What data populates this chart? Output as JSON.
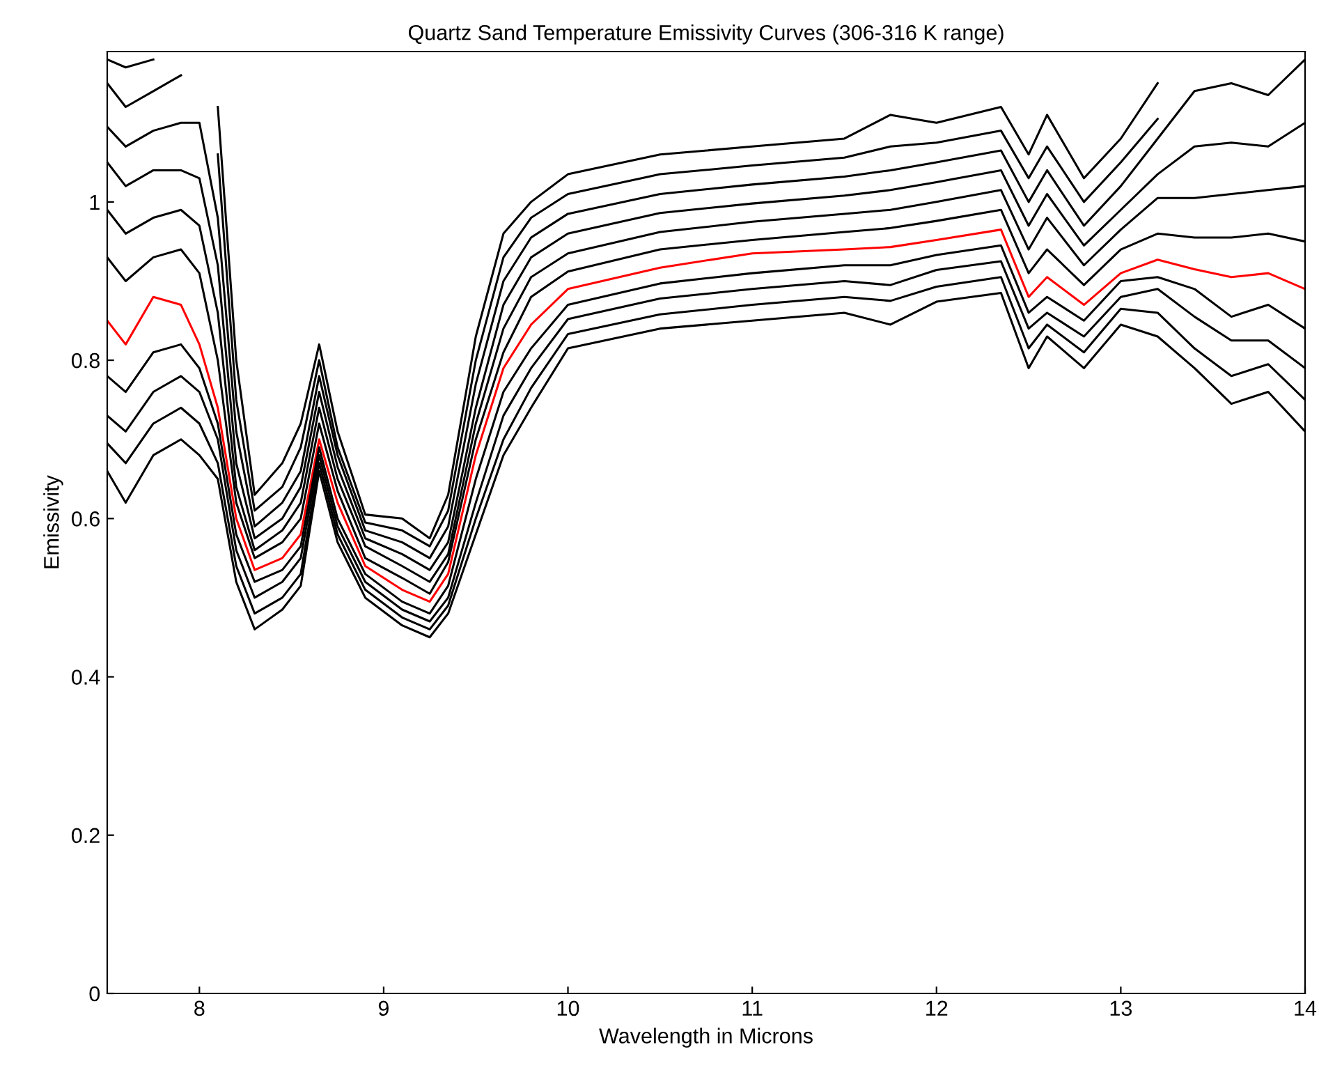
{
  "chart_data": {
    "type": "line",
    "title": "Quartz Sand Temperature Emissivity Curves (306-316 K range)",
    "xlabel": "Wavelength in Microns",
    "ylabel": "Emissivity",
    "x": [
      7.5,
      7.6,
      7.75,
      7.9,
      8.0,
      8.1,
      8.2,
      8.3,
      8.45,
      8.55,
      8.65,
      8.75,
      8.9,
      9.1,
      9.25,
      9.35,
      9.5,
      9.65,
      9.8,
      10.0,
      10.5,
      11.0,
      11.5,
      11.75,
      12.0,
      12.35,
      12.5,
      12.6,
      12.8,
      13.0,
      13.2,
      13.4,
      13.6,
      13.8,
      14.0
    ],
    "series": [
      {
        "color": "#000000",
        "values": [
          1.18,
          1.17,
          1.18,
          null,
          null,
          1.12,
          0.8,
          0.63,
          0.67,
          0.72,
          0.82,
          0.71,
          0.605,
          0.6,
          0.575,
          0.63,
          0.83,
          0.96,
          1.0,
          1.035,
          1.06,
          1.07,
          1.08,
          1.11,
          1.1,
          1.12,
          1.06,
          1.11,
          1.03,
          1.08,
          1.15,
          null,
          null,
          null,
          null
        ]
      },
      {
        "color": "#000000",
        "values": [
          1.15,
          1.12,
          1.14,
          1.16,
          null,
          1.06,
          0.75,
          0.61,
          0.64,
          0.69,
          0.8,
          0.69,
          0.595,
          0.585,
          0.565,
          0.61,
          0.8,
          0.93,
          0.98,
          1.01,
          1.035,
          1.046,
          1.056,
          1.07,
          1.075,
          1.09,
          1.03,
          1.07,
          1.0,
          1.05,
          1.105,
          null,
          null,
          null,
          null
        ]
      },
      {
        "color": "#000000",
        "values": [
          1.095,
          1.07,
          1.09,
          1.1,
          1.1,
          0.98,
          0.71,
          0.59,
          0.62,
          0.66,
          0.78,
          0.68,
          0.585,
          0.57,
          0.55,
          0.59,
          0.77,
          0.9,
          0.955,
          0.985,
          1.01,
          1.022,
          1.032,
          1.04,
          1.05,
          1.065,
          1.0,
          1.04,
          0.97,
          1.02,
          1.08,
          1.14,
          1.15,
          1.135,
          1.18
        ]
      },
      {
        "color": "#000000",
        "values": [
          1.05,
          1.02,
          1.04,
          1.04,
          1.03,
          0.92,
          0.67,
          0.575,
          0.6,
          0.64,
          0.76,
          0.665,
          0.575,
          0.555,
          0.535,
          0.57,
          0.74,
          0.87,
          0.93,
          0.96,
          0.986,
          0.998,
          1.008,
          1.015,
          1.025,
          1.04,
          0.97,
          1.01,
          0.945,
          0.99,
          1.035,
          1.07,
          1.075,
          1.07,
          1.1
        ]
      },
      {
        "color": "#000000",
        "values": [
          0.99,
          0.96,
          0.98,
          0.99,
          0.97,
          0.86,
          0.64,
          0.56,
          0.585,
          0.62,
          0.74,
          0.65,
          0.565,
          0.54,
          0.52,
          0.555,
          0.72,
          0.84,
          0.905,
          0.935,
          0.962,
          0.975,
          0.985,
          0.99,
          1.0,
          1.015,
          0.94,
          0.98,
          0.92,
          0.965,
          1.005,
          1.005,
          1.01,
          1.015,
          1.02
        ]
      },
      {
        "color": "#000000",
        "values": [
          0.93,
          0.9,
          0.93,
          0.94,
          0.91,
          0.8,
          0.62,
          0.55,
          0.57,
          0.6,
          0.72,
          0.635,
          0.55,
          0.525,
          0.505,
          0.545,
          0.7,
          0.81,
          0.88,
          0.912,
          0.94,
          0.952,
          0.962,
          0.967,
          0.976,
          0.99,
          0.91,
          0.94,
          0.895,
          0.94,
          0.96,
          0.955,
          0.955,
          0.96,
          0.95
        ]
      },
      {
        "color": "#ff0000",
        "values": [
          0.85,
          0.82,
          0.88,
          0.87,
          0.82,
          0.74,
          0.6,
          0.535,
          0.55,
          0.58,
          0.7,
          0.62,
          0.54,
          0.51,
          0.495,
          0.53,
          0.68,
          0.79,
          0.845,
          0.89,
          0.917,
          0.935,
          0.94,
          0.943,
          0.952,
          0.965,
          0.88,
          0.905,
          0.87,
          0.91,
          0.927,
          0.915,
          0.905,
          0.91,
          0.89
        ]
      },
      {
        "color": "#000000",
        "values": [
          0.78,
          0.76,
          0.81,
          0.82,
          0.79,
          0.72,
          0.58,
          0.52,
          0.535,
          0.565,
          0.69,
          0.6,
          0.53,
          0.495,
          0.48,
          0.515,
          0.65,
          0.76,
          0.815,
          0.87,
          0.897,
          0.91,
          0.92,
          0.92,
          0.933,
          0.945,
          0.86,
          0.88,
          0.85,
          0.9,
          0.905,
          0.89,
          0.855,
          0.87,
          0.84
        ]
      },
      {
        "color": "#000000",
        "values": [
          0.73,
          0.71,
          0.76,
          0.78,
          0.76,
          0.7,
          0.56,
          0.5,
          0.52,
          0.55,
          0.68,
          0.59,
          0.52,
          0.485,
          0.47,
          0.5,
          0.62,
          0.73,
          0.79,
          0.852,
          0.878,
          0.89,
          0.9,
          0.895,
          0.914,
          0.925,
          0.84,
          0.86,
          0.83,
          0.88,
          0.89,
          0.855,
          0.825,
          0.825,
          0.79
        ]
      },
      {
        "color": "#000000",
        "values": [
          0.695,
          0.67,
          0.72,
          0.74,
          0.72,
          0.67,
          0.54,
          0.48,
          0.5,
          0.53,
          0.67,
          0.58,
          0.51,
          0.475,
          0.46,
          0.49,
          0.6,
          0.7,
          0.765,
          0.833,
          0.858,
          0.87,
          0.88,
          0.875,
          0.893,
          0.905,
          0.815,
          0.845,
          0.81,
          0.865,
          0.86,
          0.815,
          0.78,
          0.795,
          0.75
        ]
      },
      {
        "color": "#000000",
        "values": [
          0.66,
          0.62,
          0.68,
          0.7,
          0.68,
          0.65,
          0.52,
          0.46,
          0.485,
          0.515,
          0.66,
          0.57,
          0.5,
          0.465,
          0.45,
          0.48,
          0.58,
          0.68,
          0.74,
          0.815,
          0.84,
          0.85,
          0.86,
          0.845,
          0.874,
          0.885,
          0.79,
          0.83,
          0.79,
          0.845,
          0.83,
          0.79,
          0.745,
          0.76,
          0.71
        ]
      }
    ],
    "xlim": [
      7.5,
      14
    ],
    "ylim": [
      0,
      1.19
    ],
    "xticks": [
      8,
      9,
      10,
      11,
      12,
      13,
      14
    ],
    "yticks": [
      0,
      0.2,
      0.4,
      0.6,
      0.8,
      1
    ],
    "grid": false,
    "marker": "none",
    "line_style": "solid"
  }
}
